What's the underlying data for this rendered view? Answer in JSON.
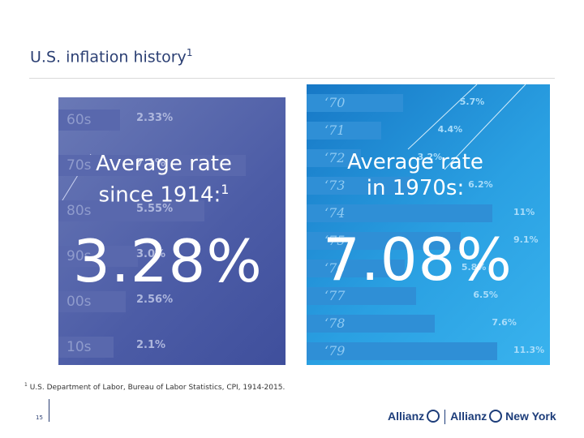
{
  "slide": {
    "title": "U.S. inflation history",
    "title_footnote_mark": "1",
    "page_number": "15"
  },
  "chart_data": [
    {
      "type": "bar",
      "title": "Average rate since 1914",
      "categories": [
        "60s",
        "70s",
        "80s",
        "90s",
        "00s",
        "10s"
      ],
      "values": [
        2.33,
        7.1,
        5.55,
        3.0,
        2.56,
        2.1
      ],
      "value_labels": [
        "2.33%",
        "7.1%",
        "5.55%",
        "3.0%",
        "2.56%",
        "2.1%"
      ],
      "xmax": 8,
      "callout_label_lines": [
        "Average rate",
        "since 1914:"
      ],
      "callout_footnote_mark": "1",
      "callout_value": "3.28%"
    },
    {
      "type": "bar",
      "title": "Average rate in 1970s",
      "categories": [
        "‘70",
        "‘71",
        "‘72",
        "‘73",
        "‘74",
        "‘75",
        "‘76",
        "‘77",
        "‘78",
        "‘79"
      ],
      "values": [
        5.7,
        4.4,
        3.2,
        6.2,
        11.0,
        9.1,
        5.8,
        6.5,
        7.6,
        11.3
      ],
      "value_labels": [
        "5.7%",
        "4.4%",
        "3.2%",
        "6.2%",
        "11%",
        "9.1%",
        "5.8%",
        "6.5%",
        "7.6%",
        "11.3%"
      ],
      "xmax": 12,
      "callout_label_lines": [
        "Average rate",
        "in 1970s:"
      ],
      "callout_value": "7.08%"
    }
  ],
  "footnote": {
    "mark": "1",
    "text": "U.S. Department of Labor, Bureau of Labor Statistics, CPI, 1914-2015."
  },
  "logo": {
    "primary": "Allianz",
    "secondary": "Allianz",
    "secondary_suffix": "New York"
  }
}
